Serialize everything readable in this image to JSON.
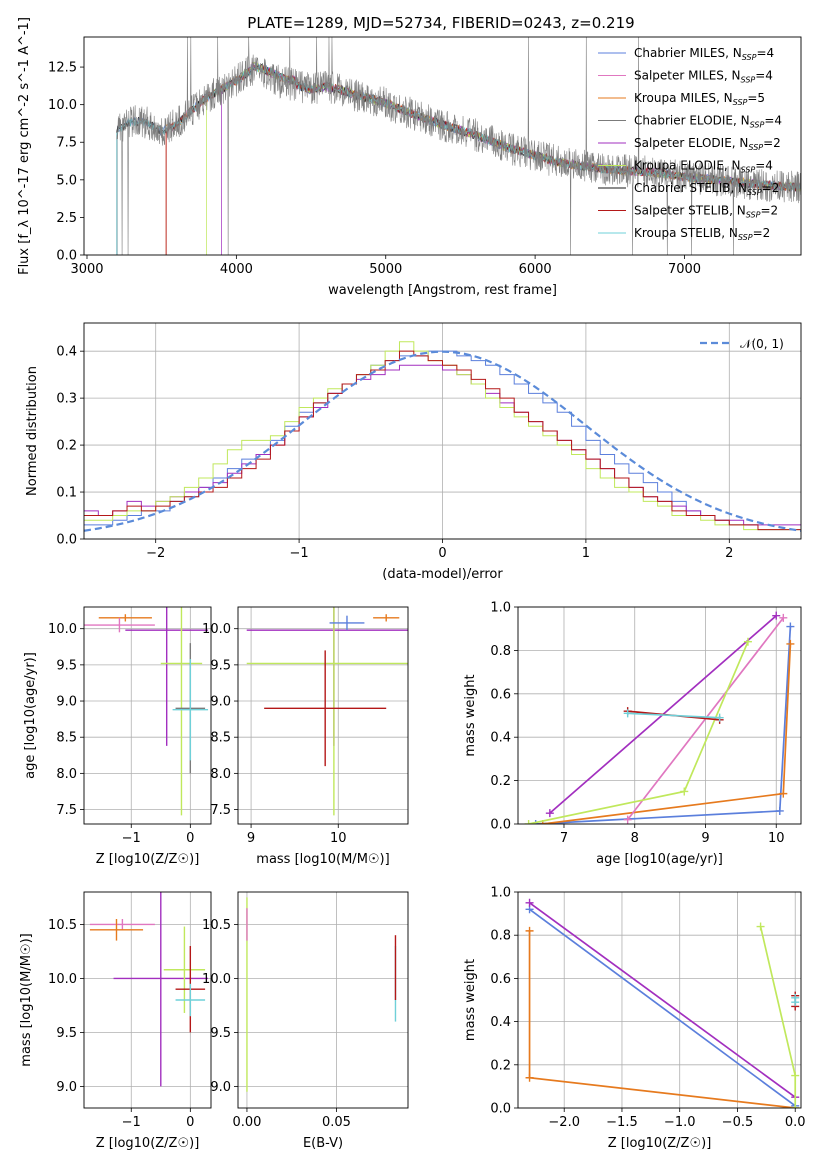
{
  "title": "PLATE=1289, MJD=52734, FIBERID=0243, z=0.219",
  "colors": {
    "c1": "#5b7fdc",
    "c2": "#e077c0",
    "c3": "#e67a1e",
    "c4": "#7b7b7b",
    "c5": "#a22fbf",
    "c6": "#c0e85c",
    "c7": "#1a1a1a",
    "c8": "#b41818",
    "c9": "#6fd0d8",
    "normal": "#5b8bd9",
    "dataline": "#7f7f7f"
  },
  "chart_data": [
    {
      "id": "spectrum",
      "type": "line",
      "xlabel": "wavelength [Angstrom, rest frame]",
      "ylabel": "Flux [f_λ 10^-17 erg cm^-2 s^-1 A^-1]",
      "xlim": [
        2980,
        7780
      ],
      "ylim": [
        0,
        14.5
      ],
      "xticks": [
        3000,
        4000,
        5000,
        6000,
        7000
      ],
      "yticks": [
        0.0,
        2.5,
        5.0,
        7.5,
        10.0,
        12.5
      ],
      "legend_position": "top-right",
      "legend": [
        {
          "label": "Chabrier MILES, N_SSP=4",
          "color": "c1"
        },
        {
          "label": "Salpeter MILES, N_SSP=4",
          "color": "c2"
        },
        {
          "label": "Kroupa MILES, N_SSP=5",
          "color": "c3"
        },
        {
          "label": "Chabrier ELODIE, N_SSP=4",
          "color": "c4"
        },
        {
          "label": "Salpeter ELODIE, N_SSP=2",
          "color": "c5"
        },
        {
          "label": "Kroupa ELODIE, N_SSP=4",
          "color": "c6"
        },
        {
          "label": "Chabrier STELIB, N_SSP=2",
          "color": "c7"
        },
        {
          "label": "Salpeter STELIB, N_SSP=2",
          "color": "c8"
        },
        {
          "label": "Kroupa STELIB, N_SSP=2",
          "color": "c9"
        }
      ],
      "continuum_x": [
        3200,
        3300,
        3400,
        3500,
        3600,
        3700,
        3800,
        3900,
        4000,
        4100,
        4200,
        4300,
        4400,
        4500,
        4600,
        4700,
        4800,
        4900,
        5000,
        5200,
        5400,
        5600,
        5800,
        6000,
        6200,
        6400,
        6600,
        6800,
        7000,
        7200,
        7400,
        7600,
        7780
      ],
      "continuum_y": [
        8.3,
        8.9,
        8.8,
        8.2,
        8.7,
        9.6,
        10.5,
        11.0,
        11.6,
        12.3,
        12.0,
        11.5,
        11.3,
        11.0,
        11.2,
        11.0,
        10.6,
        10.4,
        10.1,
        9.3,
        8.6,
        8.0,
        7.2,
        6.6,
        6.1,
        5.8,
        5.6,
        5.5,
        5.2,
        5.0,
        4.8,
        4.6,
        4.5
      ]
    },
    {
      "id": "histogram",
      "type": "histogram",
      "xlabel": "(data-model)/error",
      "ylabel": "Normed distribution",
      "xlim": [
        -2.5,
        2.5
      ],
      "ylim": [
        0,
        0.46
      ],
      "xticks": [
        -2,
        -1,
        0,
        1,
        2
      ],
      "yticks": [
        0.0,
        0.1,
        0.2,
        0.3,
        0.4
      ],
      "grid": true,
      "legend_position": "top-right",
      "normal_label": "𝒩(0, 1)",
      "bins_from": -2.5,
      "bin_width": 0.1,
      "series": [
        {
          "color": "c1",
          "values": [
            0.03,
            0.03,
            0.04,
            0.05,
            0.06,
            0.06,
            0.08,
            0.09,
            0.11,
            0.13,
            0.15,
            0.17,
            0.18,
            0.21,
            0.24,
            0.27,
            0.29,
            0.31,
            0.33,
            0.35,
            0.37,
            0.38,
            0.39,
            0.39,
            0.4,
            0.4,
            0.39,
            0.38,
            0.37,
            0.35,
            0.33,
            0.31,
            0.29,
            0.27,
            0.24,
            0.21,
            0.18,
            0.16,
            0.14,
            0.12,
            0.1,
            0.08,
            0.06,
            0.05,
            0.04,
            0.03,
            0.03,
            0.02,
            0.02,
            0.02
          ]
        },
        {
          "color": "c5",
          "values": [
            0.06,
            0.05,
            0.06,
            0.08,
            0.07,
            0.08,
            0.09,
            0.1,
            0.11,
            0.12,
            0.14,
            0.16,
            0.18,
            0.2,
            0.23,
            0.26,
            0.28,
            0.31,
            0.33,
            0.34,
            0.35,
            0.36,
            0.37,
            0.37,
            0.37,
            0.36,
            0.35,
            0.33,
            0.31,
            0.29,
            0.27,
            0.25,
            0.23,
            0.21,
            0.19,
            0.17,
            0.15,
            0.13,
            0.11,
            0.09,
            0.08,
            0.07,
            0.06,
            0.05,
            0.04,
            0.04,
            0.03,
            0.03,
            0.03,
            0.03
          ]
        },
        {
          "color": "c6",
          "values": [
            0.04,
            0.04,
            0.05,
            0.06,
            0.06,
            0.08,
            0.09,
            0.11,
            0.13,
            0.16,
            0.19,
            0.21,
            0.21,
            0.22,
            0.25,
            0.28,
            0.3,
            0.32,
            0.33,
            0.35,
            0.37,
            0.4,
            0.42,
            0.4,
            0.38,
            0.37,
            0.35,
            0.33,
            0.3,
            0.28,
            0.26,
            0.24,
            0.22,
            0.2,
            0.18,
            0.15,
            0.13,
            0.11,
            0.1,
            0.08,
            0.07,
            0.05,
            0.05,
            0.04,
            0.03,
            0.03,
            0.02,
            0.02,
            0.02,
            0.02
          ]
        },
        {
          "color": "c8",
          "values": [
            0.05,
            0.05,
            0.06,
            0.07,
            0.06,
            0.07,
            0.08,
            0.09,
            0.1,
            0.11,
            0.13,
            0.15,
            0.17,
            0.2,
            0.23,
            0.26,
            0.29,
            0.31,
            0.33,
            0.35,
            0.36,
            0.38,
            0.4,
            0.39,
            0.38,
            0.37,
            0.36,
            0.34,
            0.32,
            0.3,
            0.27,
            0.25,
            0.23,
            0.21,
            0.19,
            0.17,
            0.15,
            0.13,
            0.11,
            0.09,
            0.08,
            0.06,
            0.05,
            0.05,
            0.04,
            0.03,
            0.03,
            0.02,
            0.02,
            0.02
          ]
        }
      ]
    },
    {
      "id": "age_vs_Z",
      "type": "errorbar",
      "xlabel": "Z [log10(Z/Z☉)]",
      "ylabel": "age  [log10(age/yr)]",
      "xlim": [
        -1.8,
        0.35
      ],
      "ylim": [
        7.3,
        10.3
      ],
      "xticks": [
        -1,
        0
      ],
      "yticks": [
        7.5,
        8.0,
        8.5,
        9.0,
        9.5,
        10.0
      ],
      "points": [
        {
          "color": "c3",
          "x": -1.1,
          "xerr": 0.45,
          "y": 10.15,
          "yerr": 0.05
        },
        {
          "color": "c2",
          "x": -1.2,
          "xerr": 0.6,
          "y": 10.05,
          "yerr": 0.1
        },
        {
          "color": "c5",
          "x": -0.4,
          "xerr": 0.7,
          "y": 9.98,
          "yerr": 1.6
        },
        {
          "color": "c6",
          "x": -0.15,
          "xerr": 0.35,
          "y": 9.52,
          "yerr": 2.1
        },
        {
          "color": "c4",
          "x": 0.0,
          "xerr": 0.25,
          "y": 8.9,
          "yerr": 0.9
        },
        {
          "color": "c9",
          "x": 0.0,
          "xerr": 0.3,
          "y": 8.88,
          "yerr": 0.7
        }
      ]
    },
    {
      "id": "age_vs_mass",
      "type": "errorbar",
      "xlabel": "mass [log10(M/M☉)]",
      "ylabel": "",
      "xlim": [
        8.85,
        10.8
      ],
      "ylim": [
        7.3,
        10.3
      ],
      "xticks": [
        9,
        10
      ],
      "yticks": [
        7.5,
        8.0,
        8.5,
        9.0,
        9.5,
        10.0
      ],
      "points": [
        {
          "color": "c5",
          "x": 9.95,
          "xerr": 1.0,
          "y": 9.98,
          "yerr": 1.6
        },
        {
          "color": "c6",
          "x": 9.95,
          "xerr": 1.0,
          "y": 9.52,
          "yerr": 2.1
        },
        {
          "color": "c8",
          "x": 9.85,
          "xerr": 0.7,
          "y": 8.9,
          "yerr": 0.8
        },
        {
          "color": "c1",
          "x": 10.1,
          "xerr": 0.2,
          "y": 10.08,
          "yerr": 0.1
        },
        {
          "color": "c3",
          "x": 10.55,
          "xerr": 0.15,
          "y": 10.15,
          "yerr": 0.05
        }
      ]
    },
    {
      "id": "weight_vs_age",
      "type": "line",
      "xlabel": "age  [log10(age/yr)]",
      "ylabel": "mass weight",
      "xlim": [
        6.35,
        10.35
      ],
      "ylim": [
        0,
        1.0
      ],
      "xticks": [
        7,
        8,
        9,
        10
      ],
      "yticks": [
        0.0,
        0.2,
        0.4,
        0.6,
        0.8,
        1.0
      ],
      "series": [
        {
          "color": "c1",
          "x": [
            6.6,
            10.05,
            10.2
          ],
          "y": [
            0.0,
            0.06,
            0.91
          ]
        },
        {
          "color": "c3",
          "x": [
            6.7,
            10.1,
            10.2
          ],
          "y": [
            0.0,
            0.14,
            0.83
          ]
        },
        {
          "color": "c2",
          "x": [
            7.9,
            10.1
          ],
          "y": [
            0.02,
            0.95
          ]
        },
        {
          "color": "c5",
          "x": [
            6.8,
            10.0
          ],
          "y": [
            0.05,
            0.96
          ]
        },
        {
          "color": "c6",
          "x": [
            6.5,
            8.7,
            9.6
          ],
          "y": [
            0.0,
            0.15,
            0.84
          ]
        },
        {
          "color": "c8",
          "x": [
            7.9,
            9.2
          ],
          "y": [
            0.52,
            0.48
          ]
        },
        {
          "color": "c9",
          "x": [
            7.9,
            9.2
          ],
          "y": [
            0.51,
            0.49
          ]
        }
      ]
    },
    {
      "id": "mass_vs_Z",
      "type": "errorbar",
      "xlabel": "Z [log10(Z/Z☉)]",
      "ylabel": "mass [log10(M/M☉)]",
      "xlim": [
        -1.8,
        0.35
      ],
      "ylim": [
        8.8,
        10.8
      ],
      "xticks": [
        -1,
        0
      ],
      "yticks": [
        9.0,
        9.5,
        10.0,
        10.5
      ],
      "points": [
        {
          "color": "c2",
          "x": -1.15,
          "xerr": 0.55,
          "y": 10.5,
          "yerr": 0.05
        },
        {
          "color": "c3",
          "x": -1.25,
          "xerr": 0.45,
          "y": 10.45,
          "yerr": 0.1
        },
        {
          "color": "c5",
          "x": -0.5,
          "xerr": 0.8,
          "y": 10.0,
          "yerr": 1.0
        },
        {
          "color": "c6",
          "x": -0.1,
          "xerr": 0.35,
          "y": 10.08,
          "yerr": 0.4
        },
        {
          "color": "c8",
          "x": 0.0,
          "xerr": 0.25,
          "y": 9.9,
          "yerr": 0.4
        },
        {
          "color": "c9",
          "x": 0.0,
          "xerr": 0.25,
          "y": 9.8,
          "yerr": 0.15
        }
      ]
    },
    {
      "id": "mass_vs_ebv",
      "type": "errorbar",
      "xlabel": "E(B-V)",
      "ylabel": "",
      "xlim": [
        -0.005,
        0.09
      ],
      "ylim": [
        8.8,
        10.8
      ],
      "xticks": [
        0.0,
        0.05
      ],
      "yticks": [
        9.0,
        9.5,
        10.0,
        10.5
      ],
      "points": [
        {
          "color": "c6",
          "x": 0.0,
          "xerr": 0.0,
          "y": 9.85,
          "yerr": 0.9
        },
        {
          "color": "c2",
          "x": 0.0,
          "xerr": 0.0,
          "y": 10.5,
          "yerr": 0.15
        },
        {
          "color": "c9",
          "x": 0.083,
          "xerr": 0.0,
          "y": 9.95,
          "yerr": 0.35
        },
        {
          "color": "c8",
          "x": 0.083,
          "xerr": 0.0,
          "y": 10.1,
          "yerr": 0.3
        }
      ]
    },
    {
      "id": "weight_vs_Z",
      "type": "line",
      "xlabel": "Z [log10(Z/Z☉)]",
      "ylabel": "mass weight",
      "xlim": [
        -2.4,
        0.05
      ],
      "ylim": [
        0,
        1.0
      ],
      "xticks": [
        -2.0,
        -1.5,
        -1.0,
        -0.5,
        0.0
      ],
      "yticks": [
        0.0,
        0.2,
        0.4,
        0.6,
        0.8,
        1.0
      ],
      "series": [
        {
          "color": "c1",
          "x": [
            -2.3,
            0.0
          ],
          "y": [
            0.92,
            0.01
          ]
        },
        {
          "color": "c5",
          "x": [
            -2.3,
            0.0
          ],
          "y": [
            0.95,
            0.05
          ]
        },
        {
          "color": "c3",
          "x": [
            -2.3,
            -2.3,
            0.0
          ],
          "y": [
            0.82,
            0.14,
            0.0
          ]
        },
        {
          "color": "c6",
          "x": [
            -0.3,
            0.0,
            0.0
          ],
          "y": [
            0.84,
            0.15,
            0.0
          ]
        },
        {
          "color": "c8",
          "x": [
            0.0,
            0.0
          ],
          "y": [
            0.47,
            0.52
          ]
        },
        {
          "color": "c9",
          "x": [
            0.0,
            0.0
          ],
          "y": [
            0.49,
            0.51
          ]
        }
      ]
    }
  ]
}
